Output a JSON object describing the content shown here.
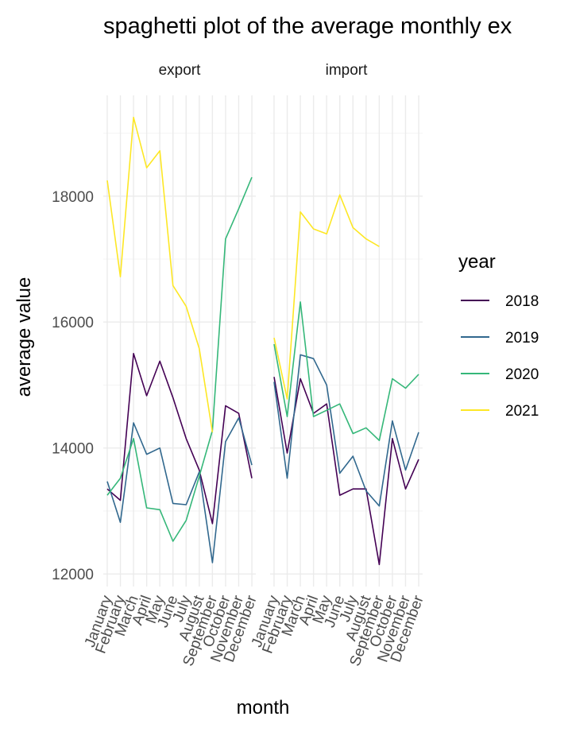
{
  "chart_data": {
    "type": "line",
    "title": "spaghetti plot of the average monthly ex",
    "xlabel": "month",
    "ylabel": "average value",
    "legend_title": "year",
    "legend_position": "right",
    "grid": true,
    "ylim": [
      11800,
      19600
    ],
    "y_ticks": [
      12000,
      14000,
      16000,
      18000
    ],
    "y_tick_labels": [
      "12000",
      "14000",
      "16000",
      "18000"
    ],
    "categories": [
      "January",
      "February",
      "March",
      "April",
      "May",
      "June",
      "July",
      "August",
      "September",
      "October",
      "November",
      "December"
    ],
    "panels": [
      {
        "name": "export",
        "series": [
          {
            "name": "2018",
            "color": "#440154",
            "values": [
              13350,
              13170,
              15500,
              14830,
              15380,
              14800,
              14150,
              13650,
              12800,
              14670,
              14550,
              13520
            ]
          },
          {
            "name": "2019",
            "color": "#31688e",
            "values": [
              13470,
              12820,
              14400,
              13900,
              14000,
              13120,
              13100,
              13620,
              12180,
              14100,
              14480,
              13730
            ]
          },
          {
            "name": "2020",
            "color": "#35b779",
            "values": [
              13250,
              13520,
              14150,
              13050,
              13020,
              12520,
              12850,
              13550,
              14280,
              17320,
              17800,
              18300
            ]
          },
          {
            "name": "2021",
            "color": "#fde725",
            "values": [
              18250,
              16720,
              19250,
              18450,
              18720,
              16580,
              16250,
              15580,
              14250,
              null,
              null,
              null
            ]
          }
        ]
      },
      {
        "name": "import",
        "series": [
          {
            "name": "2018",
            "color": "#440154",
            "values": [
              15130,
              13920,
              15100,
              14550,
              14700,
              13250,
              13350,
              13350,
              12150,
              14150,
              13350,
              13820
            ]
          },
          {
            "name": "2019",
            "color": "#31688e",
            "values": [
              15050,
              13520,
              15480,
              15420,
              15000,
              13600,
              13870,
              13320,
              13080,
              14430,
              13650,
              14250
            ]
          },
          {
            "name": "2020",
            "color": "#35b779",
            "values": [
              15650,
              14500,
              16320,
              14500,
              14600,
              14700,
              14230,
              14320,
              14120,
              15100,
              14950,
              15170
            ]
          },
          {
            "name": "2021",
            "color": "#fde725",
            "values": [
              15750,
              14780,
              17750,
              17480,
              17400,
              18020,
              17500,
              17320,
              17200,
              null,
              null,
              null
            ]
          }
        ]
      }
    ]
  }
}
